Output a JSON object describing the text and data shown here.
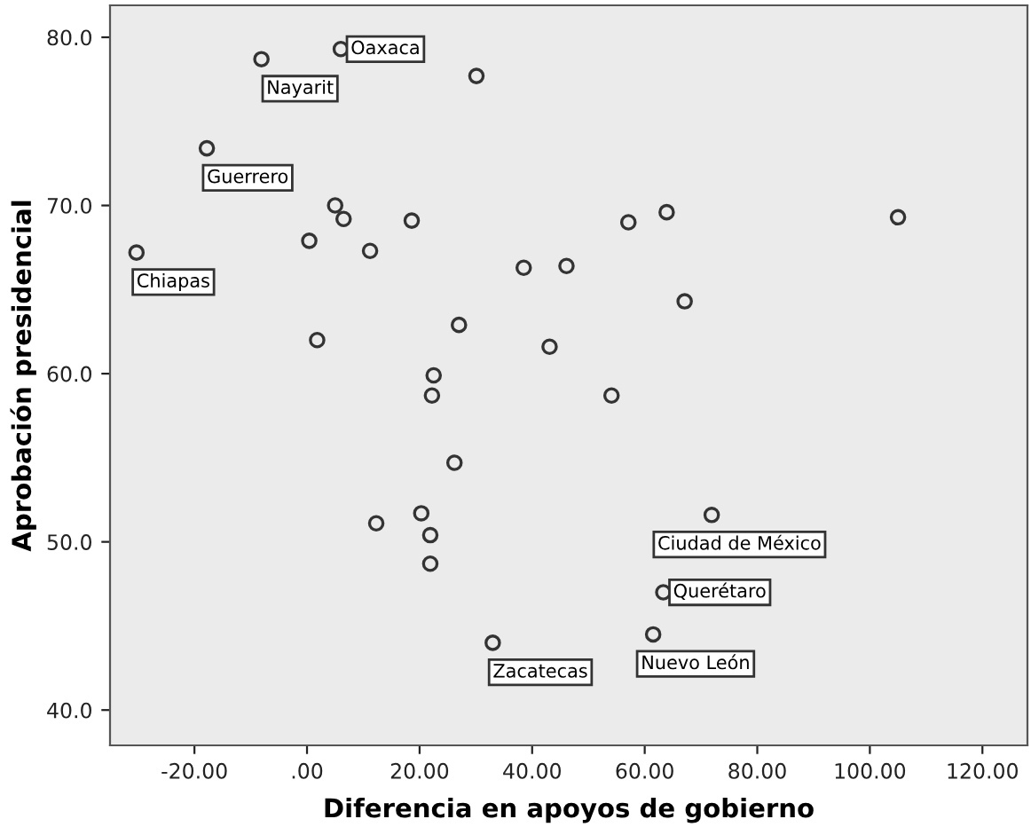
{
  "chart_data": {
    "type": "scatter",
    "xlabel": "Diferencia en apoyos de gobierno",
    "ylabel": "Aprobación presidencial",
    "xlim": [
      -35,
      128
    ],
    "ylim": [
      37.9,
      81.9
    ],
    "xticks": [
      {
        "value": -20,
        "label": "-20.00"
      },
      {
        "value": 0,
        "label": ".00"
      },
      {
        "value": 20,
        "label": "20.00"
      },
      {
        "value": 40,
        "label": "40.00"
      },
      {
        "value": 60,
        "label": "60.00"
      },
      {
        "value": 80,
        "label": "80.00"
      },
      {
        "value": 100,
        "label": "100.00"
      },
      {
        "value": 120,
        "label": "120.00"
      }
    ],
    "yticks": [
      {
        "value": 40,
        "label": "40.0"
      },
      {
        "value": 50,
        "label": "50.0"
      },
      {
        "value": 60,
        "label": "60.0"
      },
      {
        "value": 70,
        "label": "70.0"
      },
      {
        "value": 80,
        "label": "80.0"
      }
    ],
    "grid": false,
    "marker": "circle",
    "series": [
      {
        "color": "#333333",
        "x": [
          -8.1,
          6.0,
          30.1,
          -17.8,
          5.0,
          6.5,
          18.6,
          0.4,
          11.2,
          -30.3,
          38.5,
          46.1,
          27.0,
          1.8,
          43.1,
          22.5,
          22.2,
          57.1,
          63.9,
          105.0,
          67.1,
          54.1,
          26.2,
          12.3,
          20.3,
          21.9,
          21.9,
          33.0,
          71.9,
          63.3,
          61.5
        ],
        "values": [
          78.7,
          79.3,
          77.7,
          73.4,
          70.0,
          69.2,
          69.1,
          67.9,
          67.3,
          67.2,
          66.3,
          66.4,
          62.9,
          62.0,
          61.6,
          59.9,
          58.7,
          69.0,
          69.6,
          69.3,
          64.3,
          58.7,
          54.7,
          51.1,
          51.7,
          50.4,
          48.7,
          44.0,
          51.6,
          47.0,
          44.5
        ]
      }
    ],
    "annotations": [
      {
        "text": "Nayarit",
        "x": -8.1,
        "y": 78.7
      },
      {
        "text": "Oaxaca",
        "x": 6.0,
        "y": 79.3
      },
      {
        "text": "Guerrero",
        "x": -17.8,
        "y": 73.4
      },
      {
        "text": "Chiapas",
        "x": -30.3,
        "y": 67.2
      },
      {
        "text": "Zacatecas",
        "x": 33.0,
        "y": 44.0
      },
      {
        "text": "Ciudad de México",
        "x": 71.9,
        "y": 51.6
      },
      {
        "text": "Querétaro",
        "x": 63.3,
        "y": 47.0
      },
      {
        "text": "Nuevo León",
        "x": 61.5,
        "y": 44.5
      }
    ]
  }
}
